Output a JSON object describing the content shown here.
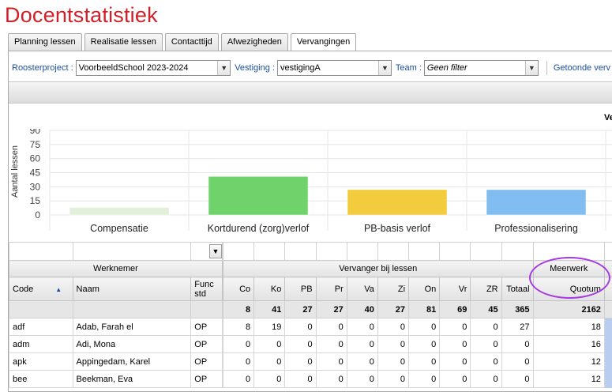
{
  "page_title": "Docentstatistiek",
  "tabs": [
    {
      "label": "Planning lessen"
    },
    {
      "label": "Realisatie lessen"
    },
    {
      "label": "Contacttijd"
    },
    {
      "label": "Afwezigheden"
    },
    {
      "label": "Vervangingen"
    }
  ],
  "filters": {
    "roosterproject_label": "Roosterproject :",
    "roosterproject_value": "VoorbeeldSchool 2023-2024",
    "vestiging_label": "Vestiging :",
    "vestiging_value": "vestigingA",
    "team_label": "Team :",
    "team_value": "Geen filter",
    "getoonde_label": "Getoonde verv"
  },
  "right_cut_label": "Ve",
  "chart_data": {
    "type": "bar",
    "categories": [
      "Compensatie",
      "Kortdurend (zorg)verlof",
      "PB-basis verlof",
      "Professionalisering"
    ],
    "values": [
      8,
      41,
      27,
      27
    ],
    "colors": [
      "#e2efd9",
      "#70d26a",
      "#f2cc3c",
      "#82bdf2"
    ],
    "ylabel": "Aantal lessen",
    "yticks": [
      "0",
      "15",
      "30",
      "45",
      "60",
      "75",
      "90"
    ],
    "ylim": [
      0,
      90
    ]
  },
  "table": {
    "group_werknemer": "Werknemer",
    "group_vervanger": "Vervanger bij lessen",
    "group_meerwerk": "Meerwerk",
    "columns": {
      "code": "Code",
      "naam": "Naam",
      "func": "Func std",
      "co": "Co",
      "ko": "Ko",
      "pb": "PB",
      "pr": "Pr",
      "va": "Va",
      "zi": "Zi",
      "on": "On",
      "vr": "Vr",
      "zr": "ZR",
      "totaal": "Totaal",
      "quotum": "Quotum"
    },
    "totals": [
      "8",
      "41",
      "27",
      "27",
      "40",
      "27",
      "81",
      "69",
      "45",
      "365",
      "2162"
    ],
    "rows": [
      {
        "code": "adf",
        "naam": "Adab, Farah el",
        "func": "OP",
        "vals": [
          "8",
          "19",
          "0",
          "0",
          "0",
          "0",
          "0",
          "0",
          "0",
          "27",
          "18"
        ]
      },
      {
        "code": "adm",
        "naam": "Adi, Mona",
        "func": "OP",
        "vals": [
          "0",
          "0",
          "0",
          "0",
          "0",
          "0",
          "0",
          "0",
          "0",
          "0",
          "16"
        ]
      },
      {
        "code": "apk",
        "naam": "Appingedam, Karel",
        "func": "OP",
        "vals": [
          "0",
          "0",
          "0",
          "0",
          "0",
          "0",
          "0",
          "0",
          "0",
          "0",
          "12"
        ]
      },
      {
        "code": "bee",
        "naam": "Beekman, Eva",
        "func": "OP",
        "vals": [
          "0",
          "0",
          "0",
          "0",
          "0",
          "0",
          "0",
          "0",
          "0",
          "0",
          "12"
        ]
      }
    ]
  }
}
